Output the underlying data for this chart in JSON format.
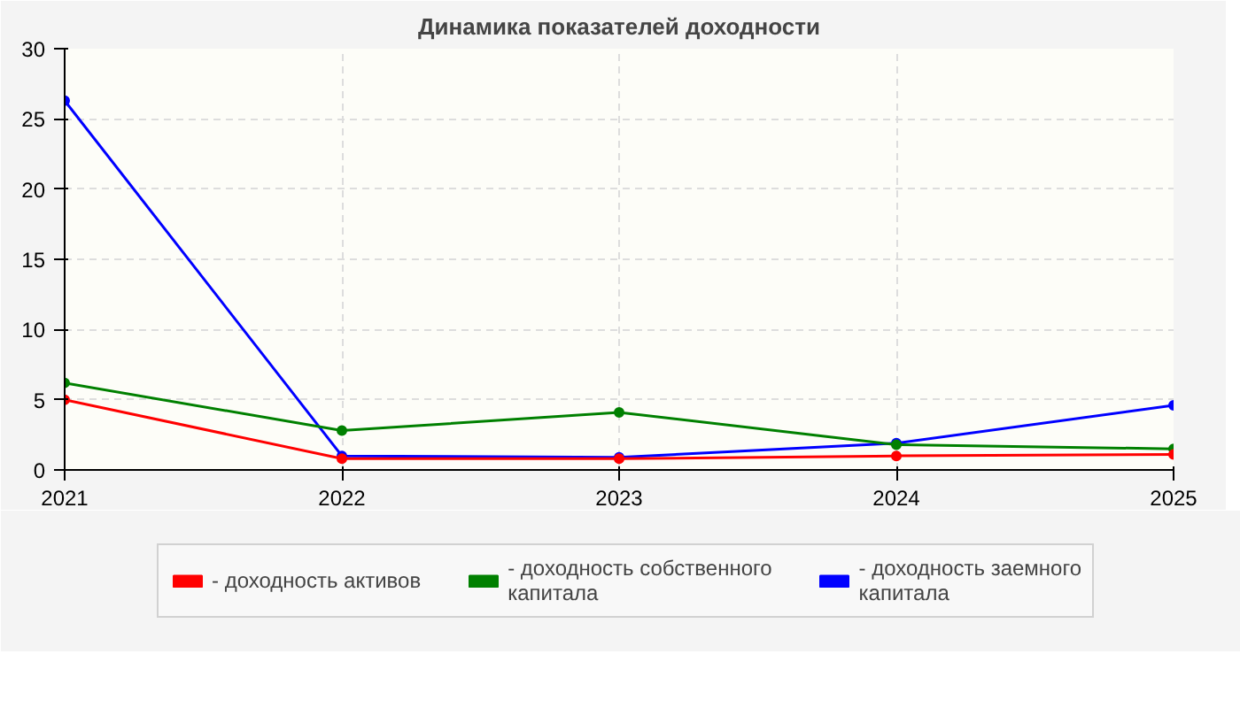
{
  "chart_data": {
    "type": "line",
    "title": "Динамика показателей доходности",
    "x": [
      2021,
      2022,
      2023,
      2024,
      2025
    ],
    "series": [
      {
        "name": "- доходность активов",
        "color": "#ff0000",
        "values": [
          5.0,
          0.8,
          0.8,
          1.0,
          1.1
        ]
      },
      {
        "name": "- доходность собственного капитала",
        "color": "#008000",
        "values": [
          6.2,
          2.8,
          4.1,
          1.8,
          1.5
        ]
      },
      {
        "name": "- доходность заемного капитала",
        "color": "#0000ff",
        "values": [
          26.3,
          1.0,
          0.9,
          1.9,
          4.6
        ]
      }
    ],
    "xlim": [
      2021,
      2025
    ],
    "xticks": [
      2021,
      2022,
      2023,
      2024,
      2025
    ],
    "ylim": [
      0,
      30
    ],
    "yticks": [
      0,
      5,
      10,
      15,
      20,
      25,
      30
    ],
    "grid": true,
    "legend": "bottom",
    "marker": "circle",
    "line_style": "solid"
  }
}
